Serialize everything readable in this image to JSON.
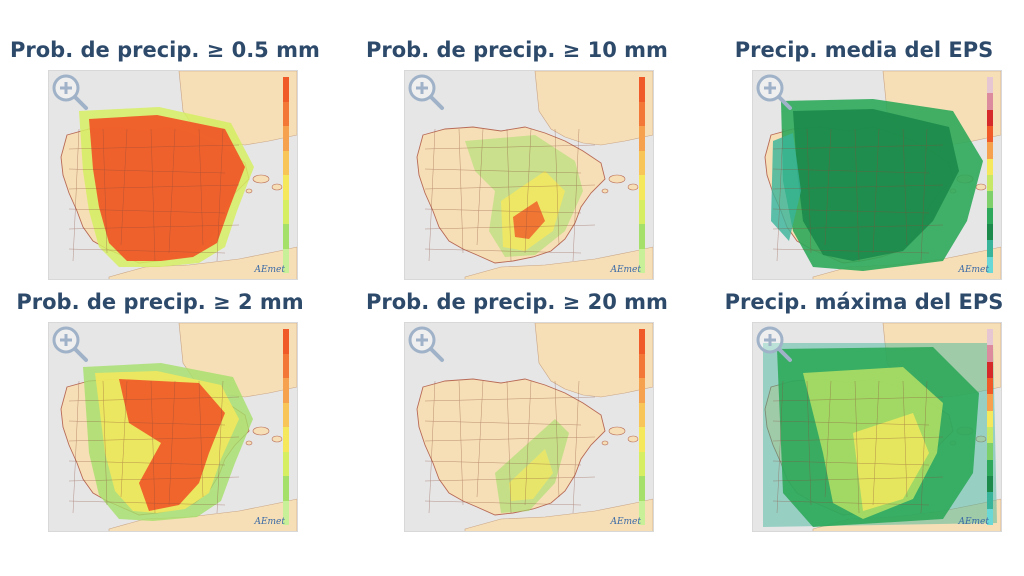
{
  "panels": [
    {
      "id": "p05",
      "title": "Prob. de precip.  ≥ 0.5 mm",
      "scale": "prob",
      "cover": "red-full"
    },
    {
      "id": "p10",
      "title": "Prob. de precip.  ≥ 10 mm",
      "scale": "prob",
      "cover": "green-south"
    },
    {
      "id": "media",
      "title": "Precip. media del EPS",
      "scale": "precip",
      "cover": "green-full"
    },
    {
      "id": "p2",
      "title": "Prob. de precip.  ≥ 2 mm",
      "scale": "prob",
      "cover": "red-mid"
    },
    {
      "id": "p20",
      "title": "Prob. de precip.  ≥ 20 mm",
      "scale": "prob",
      "cover": "green-se"
    },
    {
      "id": "maxima",
      "title": "Precip. máxima del EPS",
      "scale": "precip",
      "cover": "yellow-full"
    }
  ],
  "logo_text": "AEmet",
  "icon_names": [
    "zoom-in-icon",
    "aemet-logo-icon"
  ],
  "colors": {
    "title": "#2d4a6b",
    "sea": "#e6e6e6",
    "land": "#f6dfb6",
    "prob_scale": [
      "#f05a28",
      "#f37838",
      "#f6a14d",
      "#f8c558",
      "#f6e85c",
      "#d5ee62",
      "#a5e06a",
      "#c8f098"
    ],
    "precip_scale": [
      "#e6c6d2",
      "#dc8a9e",
      "#d62a2a",
      "#f05a28",
      "#f6a14d",
      "#f6e85c",
      "#c6e866",
      "#7ed06a",
      "#2ea85a",
      "#1c8a4a",
      "#38b49a",
      "#6ad8d6"
    ]
  }
}
